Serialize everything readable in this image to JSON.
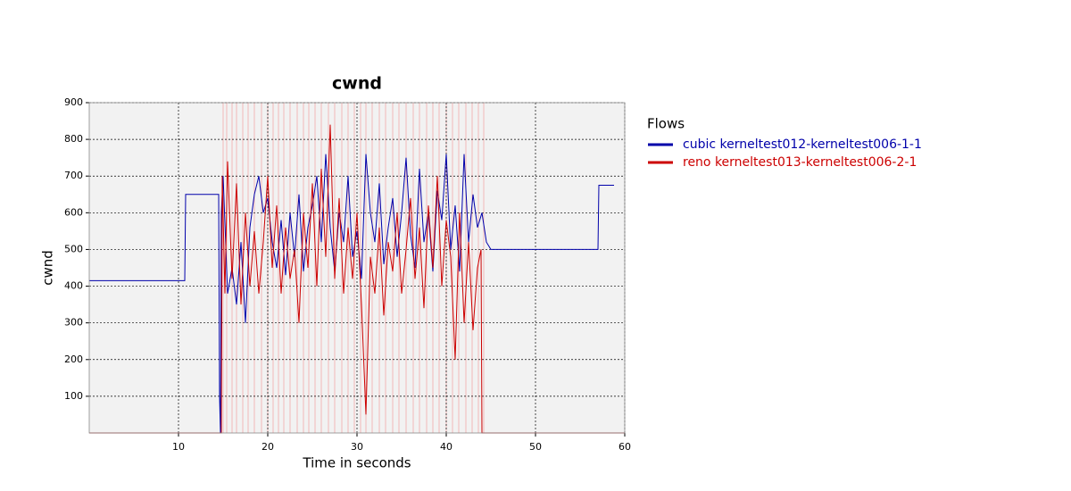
{
  "chart_data": {
    "type": "line",
    "title": "cwnd",
    "xlabel": "Time in seconds",
    "ylabel": "cwnd",
    "xlim": [
      0,
      60
    ],
    "ylim": [
      0,
      900
    ],
    "xticks": [
      10,
      20,
      30,
      40,
      50,
      60
    ],
    "yticks": [
      100,
      200,
      300,
      400,
      500,
      600,
      700,
      800,
      900
    ],
    "grid": true,
    "legend": "right",
    "legend_title": "Flows",
    "vlines_color": "#f2b8b8",
    "vlines": [
      15,
      15.4,
      16,
      16.5,
      17.2,
      17.8,
      18.5,
      19.3,
      20,
      20.6,
      21.2,
      21.8,
      22.5,
      23.3,
      24,
      24.6,
      25.3,
      26,
      26.8,
      27.5,
      28.3,
      29,
      29.7,
      30.4,
      31,
      31.7,
      32.5,
      33.2,
      34,
      34.7,
      35.5,
      36.3,
      37,
      37.8,
      38.5,
      39.2,
      40,
      40.7,
      41.4,
      42.2,
      42.9,
      43.6,
      44.2
    ],
    "series": [
      {
        "name": "cubic kerneltest012-kerneltest006-1-1",
        "color": "#0000aa",
        "x": [
          0,
          10.7,
          10.8,
          14.5,
          14.6,
          14.7,
          14.8,
          15.0,
          15.5,
          16,
          16.5,
          17,
          17.5,
          18,
          18.5,
          19,
          19.5,
          20,
          20.5,
          21,
          21.5,
          22,
          22.5,
          23,
          23.5,
          24,
          24.5,
          25,
          25.5,
          26,
          26.5,
          27,
          27.5,
          28,
          28.5,
          29,
          29.5,
          30,
          30.5,
          31,
          31.5,
          32,
          32.5,
          33,
          33.5,
          34,
          34.5,
          35,
          35.5,
          36,
          36.5,
          37,
          37.5,
          38,
          38.5,
          39,
          39.5,
          40,
          40.5,
          41,
          41.5,
          42,
          42.5,
          43,
          43.5,
          44,
          44.5,
          45,
          57,
          57.1,
          58.8
        ],
        "values": [
          415,
          415,
          650,
          650,
          100,
          0,
          600,
          700,
          380,
          450,
          350,
          520,
          300,
          560,
          650,
          700,
          600,
          640,
          520,
          450,
          580,
          430,
          600,
          480,
          650,
          440,
          560,
          620,
          700,
          520,
          760,
          560,
          440,
          600,
          520,
          700,
          480,
          550,
          420,
          760,
          600,
          520,
          680,
          460,
          560,
          640,
          480,
          600,
          750,
          540,
          450,
          720,
          520,
          600,
          440,
          660,
          580,
          760,
          500,
          620,
          440,
          760,
          520,
          650,
          560,
          600,
          520,
          500,
          500,
          675,
          675
        ]
      },
      {
        "name": "reno kerneltest013-kerneltest006-2-1",
        "color": "#cc0000",
        "x": [
          0,
          14.8,
          14.9,
          15.2,
          15.5,
          16,
          16.5,
          17,
          17.5,
          18,
          18.5,
          19,
          19.5,
          20,
          20.5,
          21,
          21.5,
          22,
          22.5,
          23,
          23.5,
          24,
          24.5,
          25,
          25.5,
          26,
          26.5,
          27,
          27.5,
          28,
          28.5,
          29,
          29.5,
          30,
          30.5,
          31,
          31.5,
          32,
          32.5,
          33,
          33.5,
          34,
          34.5,
          35,
          35.5,
          36,
          36.5,
          37,
          37.5,
          38,
          38.5,
          39,
          39.5,
          40,
          40.5,
          41,
          41.5,
          42,
          42.5,
          43,
          43.5,
          43.9,
          44.0,
          60
        ],
        "values": [
          0,
          0,
          700,
          380,
          740,
          420,
          680,
          350,
          600,
          400,
          550,
          380,
          520,
          700,
          450,
          620,
          380,
          560,
          420,
          500,
          300,
          600,
          450,
          680,
          400,
          720,
          480,
          840,
          420,
          640,
          380,
          560,
          420,
          600,
          350,
          50,
          480,
          380,
          560,
          320,
          520,
          440,
          600,
          380,
          500,
          640,
          420,
          560,
          340,
          620,
          450,
          700,
          400,
          580,
          480,
          200,
          600,
          300,
          520,
          280,
          450,
          500,
          0,
          0
        ]
      }
    ]
  }
}
